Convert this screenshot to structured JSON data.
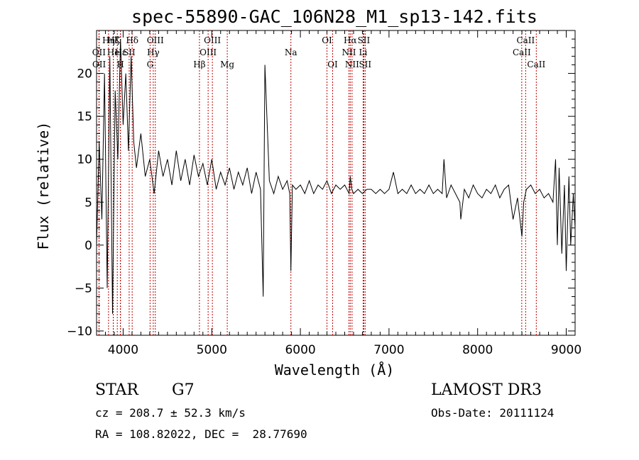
{
  "title": "spec-55890-GAC_106N28_M1_sp13-142.fits",
  "info": {
    "class_label": "STAR",
    "subclass": "G7",
    "survey": "LAMOST DR3",
    "cz": "cz = 208.7 ± 52.3 km/s",
    "obs_date": "Obs-Date: 20111124",
    "coords": "RA = 108.82022, DEC =  28.77690"
  },
  "chart_data": {
    "type": "line",
    "xlabel": "Wavelength (Å)",
    "ylabel": "Flux (relative)",
    "xlim": [
      3700,
      9100
    ],
    "ylim": [
      -10.5,
      25
    ],
    "x_ticks": [
      4000,
      5000,
      6000,
      7000,
      8000,
      9000
    ],
    "y_ticks": [
      -10,
      -5,
      0,
      5,
      10,
      15,
      20
    ],
    "line_color": "#000000",
    "marker_color": "#c00000",
    "spectral_lines": [
      {
        "name": "Hη",
        "wavelength": 3835,
        "row": 0
      },
      {
        "name": "OII",
        "wavelength": 3727,
        "row": 1
      },
      {
        "name": "OII",
        "wavelength": 3729,
        "row": 2
      },
      {
        "name": "Hζ",
        "wavelength": 3889,
        "row": 0
      },
      {
        "name": "He",
        "wavelength": 3889,
        "row": 1
      },
      {
        "name": "K",
        "wavelength": 3934,
        "row": 0
      },
      {
        "name": "H",
        "wavelength": 3969,
        "row": 2
      },
      {
        "name": "Hε",
        "wavelength": 3970,
        "row": 1
      },
      {
        "name": "SII",
        "wavelength": 4068,
        "row": 1
      },
      {
        "name": "Hδ",
        "wavelength": 4102,
        "row": 0
      },
      {
        "name": "OIII",
        "wavelength": 4363,
        "row": 0
      },
      {
        "name": "Hγ",
        "wavelength": 4340,
        "row": 1
      },
      {
        "name": "G",
        "wavelength": 4304,
        "row": 2
      },
      {
        "name": "Hβ",
        "wavelength": 4861,
        "row": 2
      },
      {
        "name": "OIII",
        "wavelength": 5007,
        "row": 0
      },
      {
        "name": "OIII",
        "wavelength": 4959,
        "row": 1
      },
      {
        "name": "Mg",
        "wavelength": 5175,
        "row": 2
      },
      {
        "name": "Na",
        "wavelength": 5893,
        "row": 1
      },
      {
        "name": "OI",
        "wavelength": 6300,
        "row": 0
      },
      {
        "name": "OI",
        "wavelength": 6364,
        "row": 2
      },
      {
        "name": "Hα",
        "wavelength": 6563,
        "row": 0
      },
      {
        "name": "NII",
        "wavelength": 6548,
        "row": 1
      },
      {
        "name": "NII",
        "wavelength": 6583,
        "row": 2
      },
      {
        "name": "SII",
        "wavelength": 6716,
        "row": 0
      },
      {
        "name": "Li",
        "wavelength": 6708,
        "row": 1
      },
      {
        "name": "SII",
        "wavelength": 6731,
        "row": 2
      },
      {
        "name": "CaII",
        "wavelength": 8542,
        "row": 0
      },
      {
        "name": "CaII",
        "wavelength": 8498,
        "row": 1
      },
      {
        "name": "CaII",
        "wavelength": 8662,
        "row": 2
      }
    ],
    "series": [
      {
        "x": [
          3700,
          3730,
          3760,
          3790,
          3820,
          3850,
          3880,
          3910,
          3940,
          3970,
          4000,
          4030,
          4060,
          4090,
          4120,
          4150,
          4200,
          4250,
          4300,
          4350,
          4400,
          4450,
          4500,
          4550,
          4600,
          4650,
          4700,
          4750,
          4800,
          4850,
          4900,
          4950,
          5000,
          5050,
          5100,
          5150,
          5200,
          5250,
          5300,
          5350,
          5400,
          5450,
          5500,
          5550,
          5580,
          5600,
          5650,
          5700,
          5750,
          5800,
          5850,
          5880,
          5893,
          5910,
          5950,
          6000,
          6050,
          6100,
          6150,
          6200,
          6250,
          6300,
          6350,
          6400,
          6450,
          6500,
          6550,
          6563,
          6580,
          6600,
          6650,
          6700,
          6750,
          6800,
          6850,
          6900,
          6950,
          7000,
          7050,
          7100,
          7150,
          7200,
          7250,
          7300,
          7350,
          7400,
          7450,
          7500,
          7550,
          7600,
          7620,
          7650,
          7700,
          7750,
          7800,
          7810,
          7850,
          7900,
          7950,
          8000,
          8050,
          8100,
          8150,
          8200,
          8250,
          8300,
          8350,
          8400,
          8450,
          8500,
          8520,
          8550,
          8600,
          8650,
          8700,
          8750,
          8800,
          8850,
          8880,
          8900,
          8920,
          8950,
          8980,
          9000,
          9030,
          9050,
          9080,
          9100
        ],
        "y": [
          0.0,
          12.0,
          3.0,
          20.0,
          -5.0,
          22.0,
          -8.0,
          18.0,
          10.0,
          24.0,
          14.0,
          20.0,
          11.0,
          22.0,
          12.0,
          9.0,
          13.0,
          8.0,
          10.0,
          6.0,
          11.0,
          8.0,
          10.0,
          7.0,
          11.0,
          7.5,
          10.0,
          7.0,
          10.5,
          8.0,
          9.5,
          7.0,
          10.0,
          6.5,
          8.5,
          7.0,
          9.0,
          6.5,
          8.5,
          7.0,
          9.0,
          6.0,
          8.5,
          6.5,
          -6.0,
          21.0,
          7.5,
          6.0,
          8.0,
          6.5,
          7.5,
          6.0,
          -3.0,
          7.0,
          6.5,
          7.0,
          6.0,
          7.5,
          6.0,
          7.0,
          6.5,
          7.5,
          6.0,
          7.0,
          6.5,
          7.0,
          6.0,
          8.0,
          6.5,
          6.0,
          6.5,
          6.0,
          6.5,
          6.5,
          6.0,
          6.5,
          6.0,
          6.5,
          8.5,
          6.0,
          6.5,
          6.0,
          7.0,
          6.0,
          6.5,
          6.0,
          7.0,
          6.0,
          6.5,
          6.0,
          10.0,
          5.5,
          7.0,
          6.0,
          5.0,
          3.0,
          6.5,
          5.5,
          7.0,
          6.0,
          5.5,
          6.5,
          6.0,
          7.0,
          5.5,
          6.5,
          7.0,
          3.0,
          5.5,
          1.0,
          5.0,
          6.5,
          7.0,
          6.0,
          6.5,
          5.5,
          6.0,
          5.0,
          10.0,
          0.0,
          9.0,
          -1.0,
          7.0,
          -3.0,
          8.0,
          0.0,
          6.0,
          2.0
        ]
      }
    ]
  }
}
